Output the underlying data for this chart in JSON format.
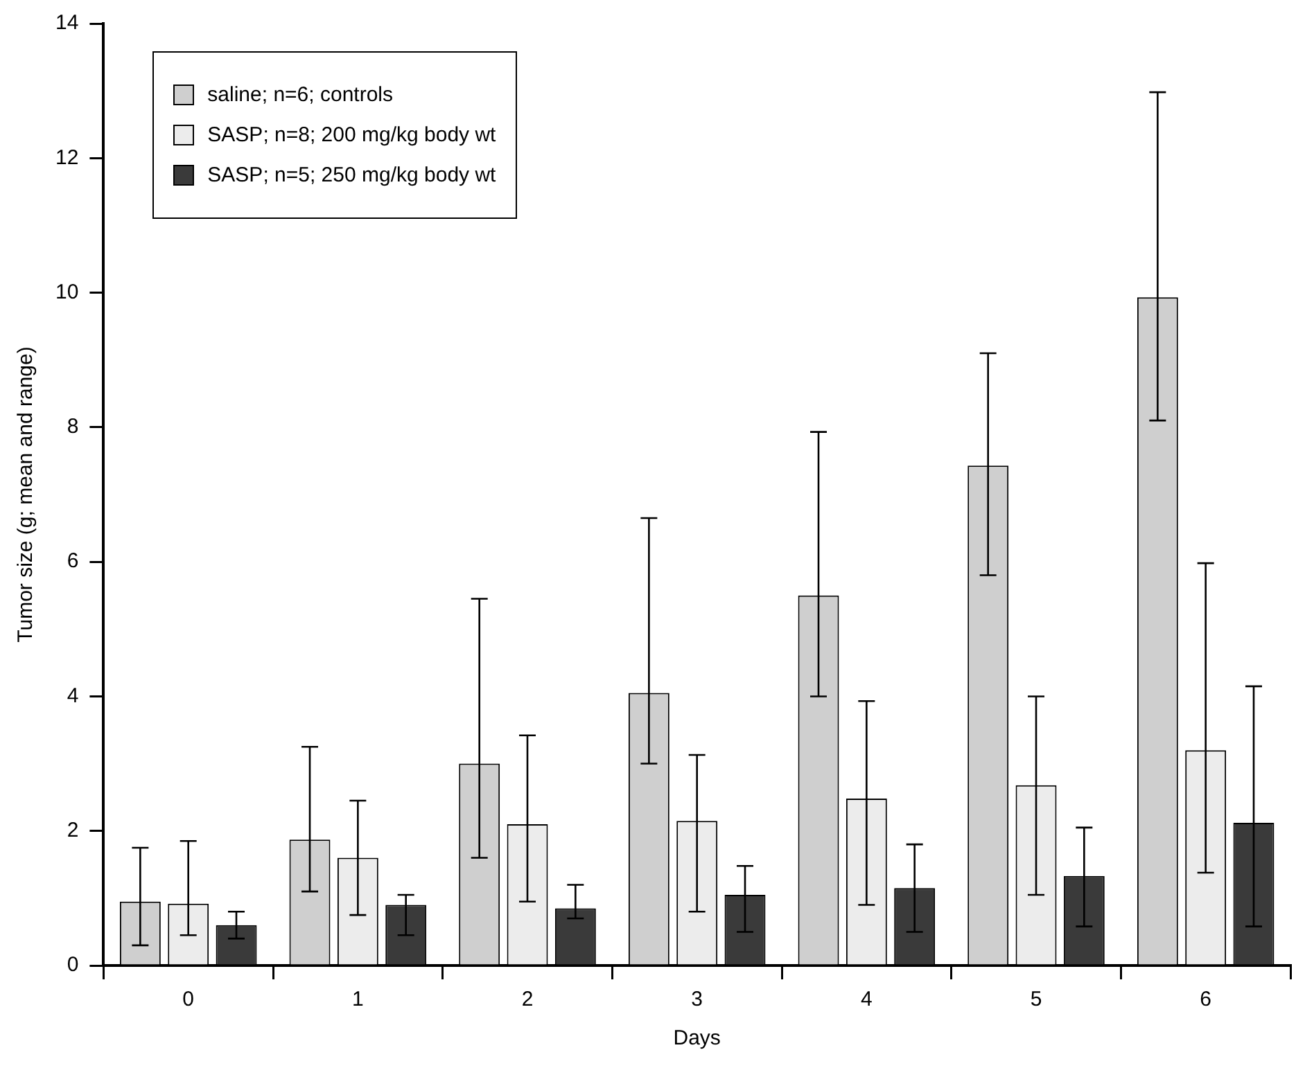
{
  "chart_data": {
    "type": "bar",
    "xlabel": "Days",
    "ylabel": "Tumor size (g; mean and range)",
    "categories": [
      "0",
      "1",
      "2",
      "3",
      "4",
      "5",
      "6"
    ],
    "ylim": [
      0,
      14
    ],
    "yticks": [
      0,
      2,
      4,
      6,
      8,
      10,
      12,
      14
    ],
    "grid": false,
    "legend": "top left",
    "series": [
      {
        "name": "saline; n=6; controls",
        "color": "#cfcfcf",
        "values": [
          0.95,
          1.87,
          3.0,
          4.05,
          5.5,
          7.43,
          9.93
        ],
        "errors": [
          [
            0.3,
            1.75
          ],
          [
            1.1,
            3.25
          ],
          [
            1.6,
            5.45
          ],
          [
            3.0,
            6.65
          ],
          [
            4.0,
            7.93
          ],
          [
            5.8,
            9.1
          ],
          [
            8.1,
            12.98
          ]
        ]
      },
      {
        "name": "SASP; n=8; 200 mg/kg body wt",
        "color": "#ececec",
        "values": [
          0.92,
          1.6,
          2.1,
          2.15,
          2.48,
          2.68,
          3.2
        ],
        "errors": [
          [
            0.45,
            1.85
          ],
          [
            0.75,
            2.45
          ],
          [
            0.95,
            3.42
          ],
          [
            0.8,
            3.13
          ],
          [
            0.9,
            3.93
          ],
          [
            1.05,
            4.0
          ],
          [
            1.38,
            5.98
          ]
        ]
      },
      {
        "name": "SASP; n=5; 250 mg/kg body wt",
        "color": "#3a3a3a",
        "values": [
          0.6,
          0.9,
          0.85,
          1.05,
          1.15,
          1.33,
          2.12
        ],
        "errors": [
          [
            0.4,
            0.8
          ],
          [
            0.45,
            1.05
          ],
          [
            0.7,
            1.2
          ],
          [
            0.5,
            1.48
          ],
          [
            0.5,
            1.8
          ],
          [
            0.58,
            2.05
          ],
          [
            0.58,
            4.15
          ]
        ]
      }
    ]
  }
}
